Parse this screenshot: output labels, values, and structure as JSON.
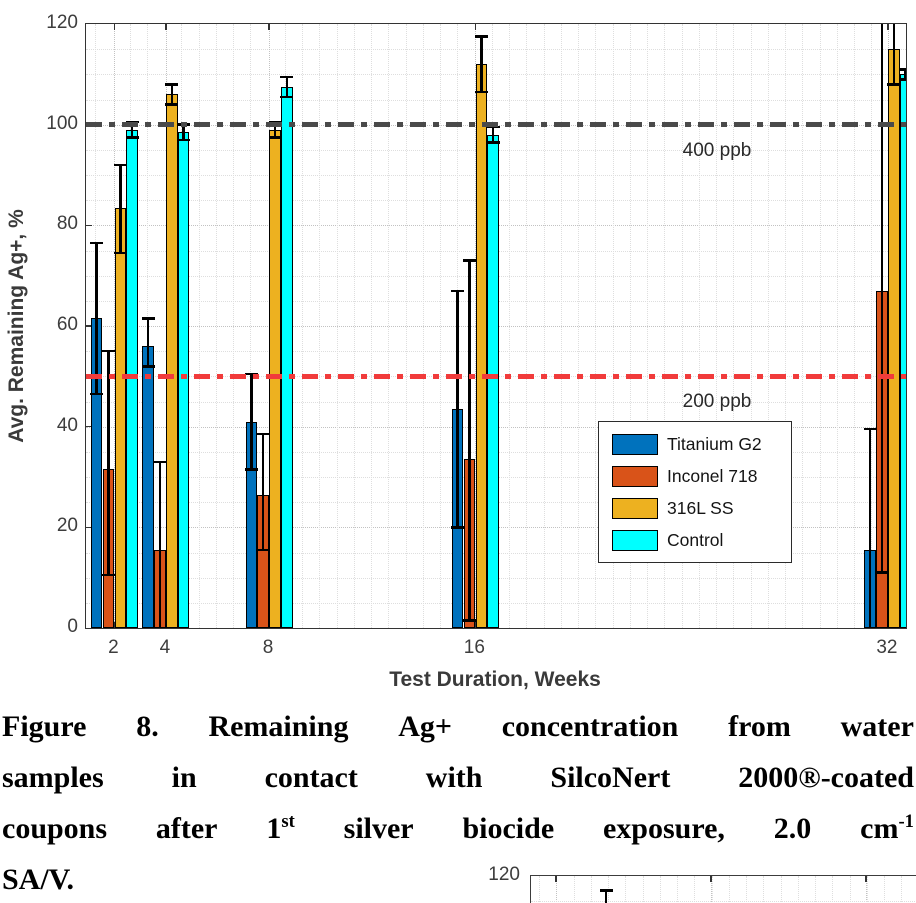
{
  "chart_data": {
    "type": "bar",
    "title": "",
    "xlabel": "Test Duration, Weeks",
    "ylabel": "Avg. Remaining Ag+, %",
    "xlim": [
      0.9,
      32.7
    ],
    "ylim": [
      0,
      120
    ],
    "yticks": [
      0,
      20,
      40,
      60,
      80,
      100,
      120
    ],
    "ytick_labels": [
      "0",
      "20",
      "40",
      "60",
      "80",
      "100",
      "120"
    ],
    "categories": [
      2,
      4,
      8,
      16,
      32
    ],
    "category_labels": [
      "2",
      "4",
      "8",
      "16",
      "32"
    ],
    "grid": "dotted major and minor, both axes",
    "legend_position": "inside lower right",
    "series": [
      {
        "name": "Titanium G2",
        "color": "#0072BD",
        "values": [
          61.5,
          56,
          41,
          43.5,
          15.5
        ],
        "err_lo": [
          46.5,
          52,
          31.5,
          20,
          -8
        ],
        "err_hi": [
          76.5,
          61.5,
          50.5,
          67,
          39.5
        ]
      },
      {
        "name": "Inconel 718",
        "color": "#D95319",
        "values": [
          31.5,
          15.5,
          26.5,
          33.5,
          67
        ],
        "err_lo": [
          10.5,
          -2,
          15.5,
          1.5,
          11
        ],
        "err_hi": [
          55,
          33,
          38.5,
          73,
          123
        ]
      },
      {
        "name": "316L SS",
        "color": "#EDB120",
        "values": [
          83.5,
          106,
          99,
          112,
          115
        ],
        "err_lo": [
          74.5,
          104,
          97.5,
          106.5,
          108
        ],
        "err_hi": [
          92,
          108,
          100.5,
          117.5,
          122
        ]
      },
      {
        "name": "Control",
        "color": "#00FFFF",
        "values": [
          99,
          98.5,
          107.5,
          98,
          110
        ],
        "err_lo": [
          97.5,
          97,
          105.5,
          96.5,
          109
        ],
        "err_hi": [
          100.5,
          100,
          109.5,
          99.5,
          111
        ]
      }
    ],
    "ref_lines": [
      {
        "value": 100,
        "label": "400 ppb",
        "color": "#4a4a4a",
        "style": "dash-dot"
      },
      {
        "value": 50,
        "label": "200 ppb",
        "color": "#f13b3b",
        "style": "dash-dot"
      }
    ]
  },
  "caption": {
    "lines": [
      {
        "justify": true,
        "words": [
          {
            "t": "Figure"
          },
          {
            "t": "8."
          },
          {
            "t": "Remaining"
          },
          {
            "t": "Ag+"
          },
          {
            "t": "concentration"
          },
          {
            "t": "from"
          },
          {
            "t": "water"
          }
        ]
      },
      {
        "justify": true,
        "words": [
          {
            "t": "samples"
          },
          {
            "t": "in"
          },
          {
            "t": "contact"
          },
          {
            "t": "with"
          },
          {
            "t": "SilcoNert"
          },
          {
            "t": "2000®-coated"
          }
        ]
      },
      {
        "justify": true,
        "words": [
          {
            "t": "coupons"
          },
          {
            "t": "after"
          },
          {
            "t": "1",
            "sup": "st"
          },
          {
            "t": "silver"
          },
          {
            "t": "biocide"
          },
          {
            "t": "exposure,"
          },
          {
            "t": "2.0"
          },
          {
            "t": "cm",
            "sup": "-1"
          }
        ]
      },
      {
        "justify": false,
        "words": [
          {
            "t": "SA/V."
          }
        ]
      }
    ]
  },
  "next_figure_fragment": {
    "ytick_label": "120"
  }
}
